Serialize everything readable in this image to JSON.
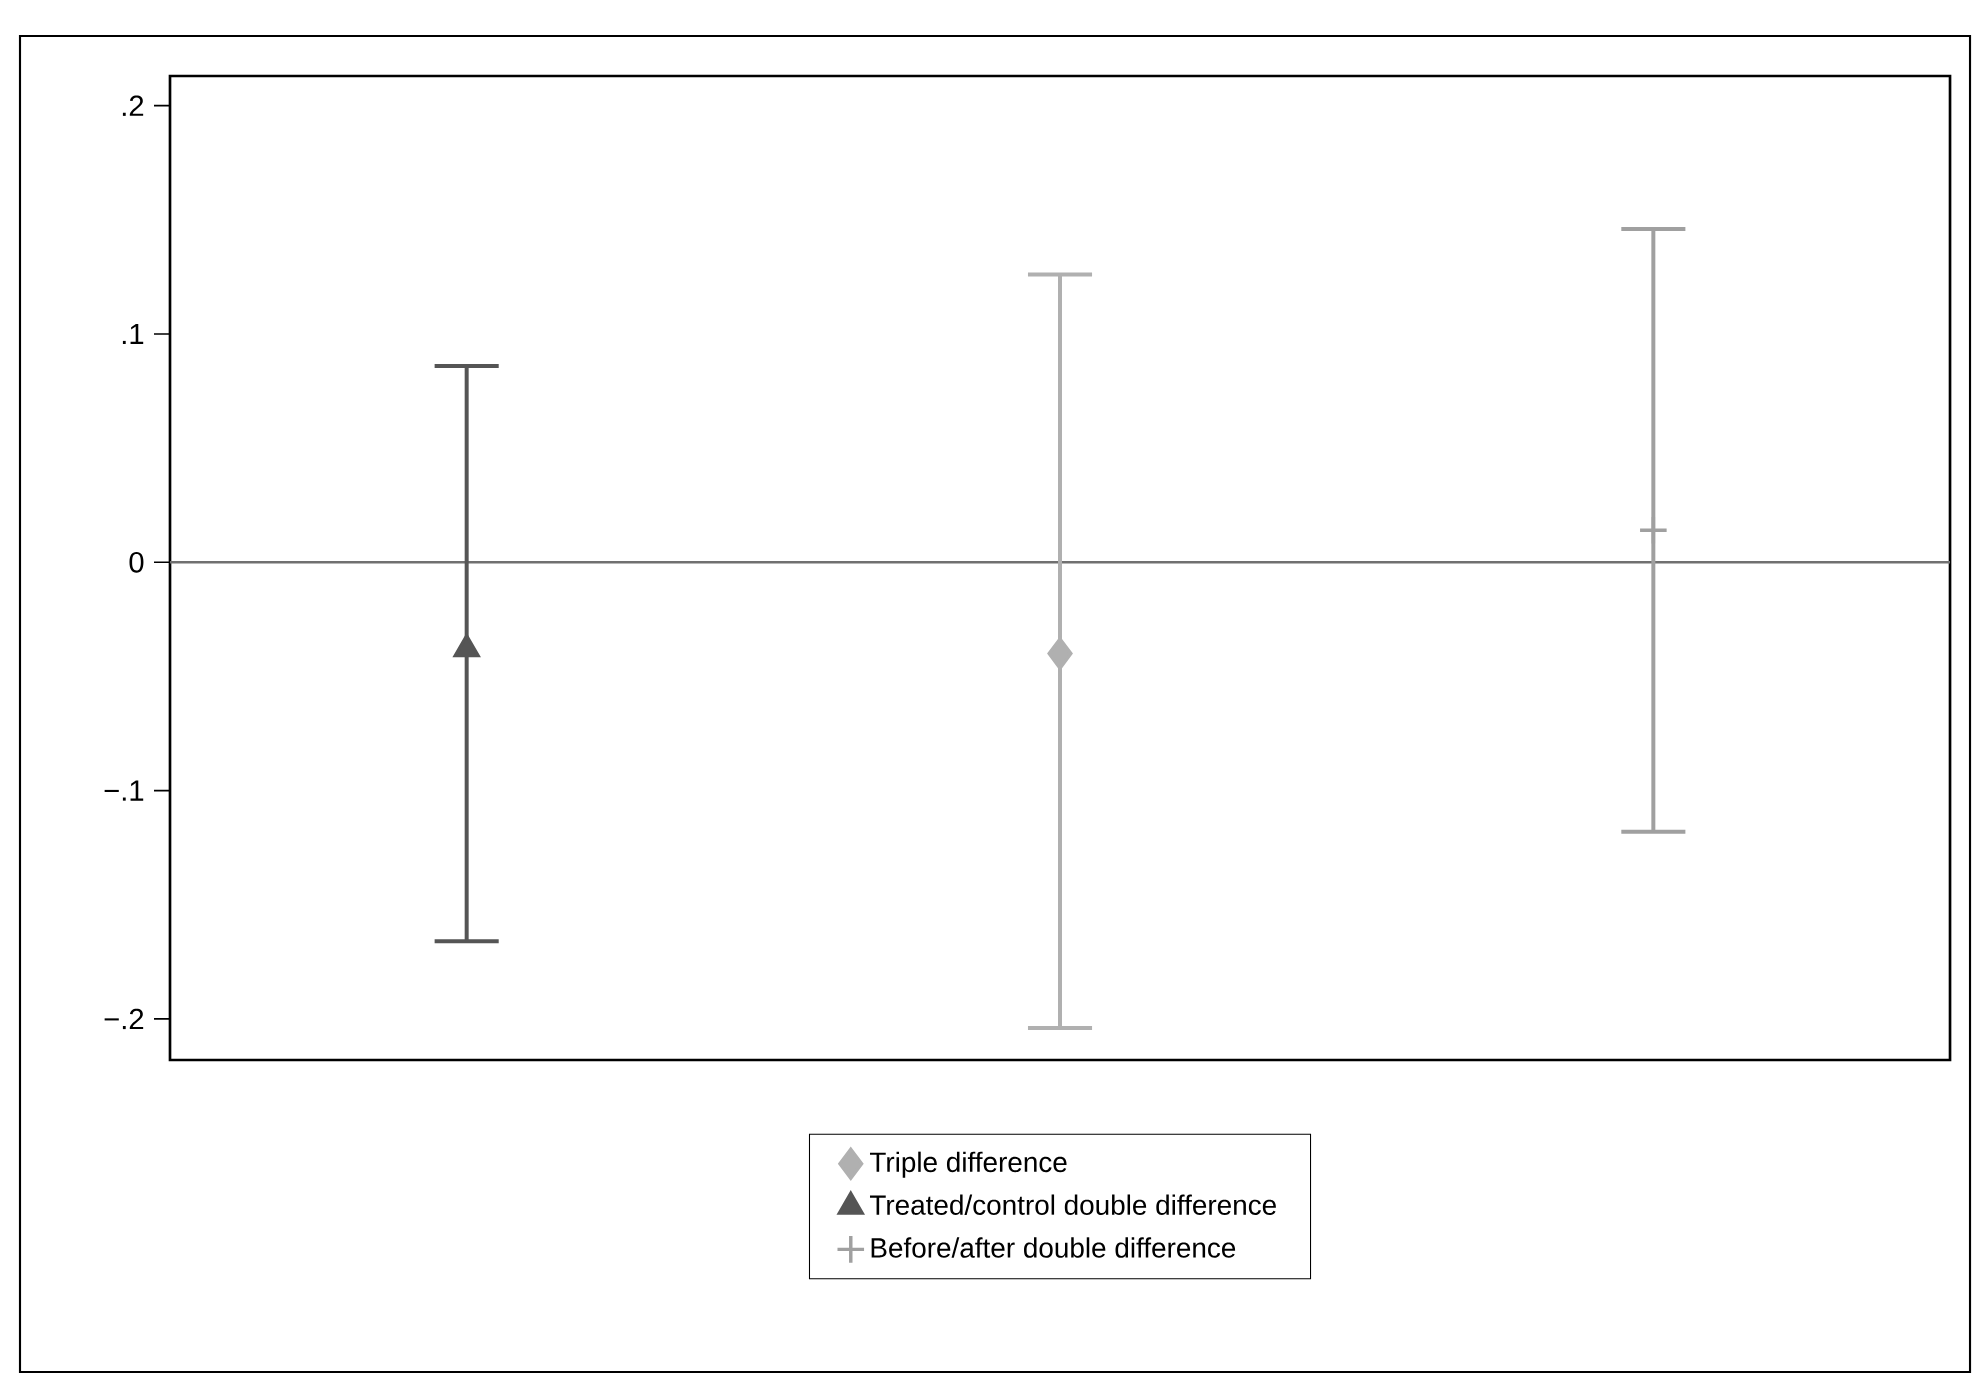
{
  "chart_data": {
    "type": "scatter",
    "categories": [
      null,
      null,
      null
    ],
    "series": [
      {
        "name": "Triple difference",
        "color": "#b0b0b0",
        "marker": "diamond",
        "values": [
          null,
          -0.04,
          null
        ],
        "errors": [
          null,
          [
            -0.204,
            0.126
          ],
          null
        ]
      },
      {
        "name": "Treated/control double difference",
        "color": "#555555",
        "marker": "triangle",
        "values": [
          -0.038,
          null,
          null
        ],
        "errors": [
          [
            -0.166,
            0.086
          ],
          null,
          null
        ]
      },
      {
        "name": "Before/after double difference",
        "color": "#a0a0a0",
        "marker": "cross",
        "values": [
          null,
          null,
          0.014
        ],
        "errors": [
          null,
          null,
          [
            -0.118,
            0.146
          ]
        ]
      }
    ],
    "ylim": [
      -0.218,
      0.213
    ],
    "yticks": [
      {
        "value": -0.2,
        "label": "−.2"
      },
      {
        "value": -0.1,
        "label": "−.1"
      },
      {
        "value": 0,
        "label": "0"
      },
      {
        "value": 0.1,
        "label": ".1"
      },
      {
        "value": 0.2,
        "label": ".2"
      }
    ],
    "ref_lines": [
      {
        "axis": "y",
        "value": 0,
        "color": "#707070"
      }
    ],
    "legend": "bottom",
    "grid": false
  }
}
